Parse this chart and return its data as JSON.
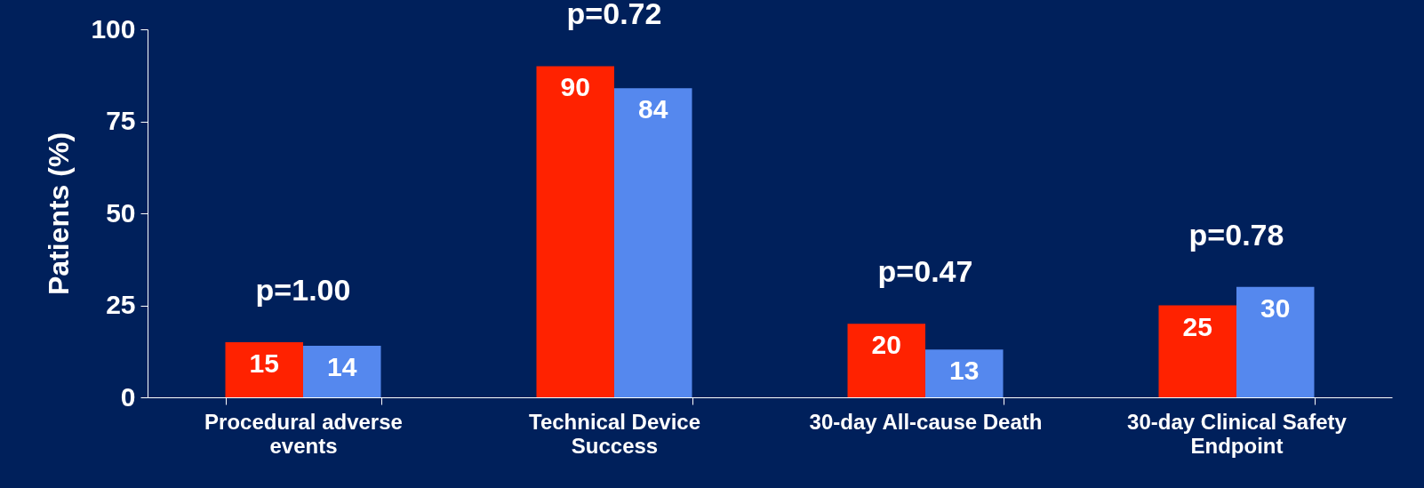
{
  "chart_data": {
    "type": "bar",
    "ylabel": "Patients (%)",
    "categories": [
      "Procedural adverse events",
      "Technical Device Success",
      "30-day All-cause Death",
      "30-day Clinical Safety Endpoint"
    ],
    "series": [
      {
        "color": "#ff2200",
        "values": [
          15,
          90,
          20,
          25
        ]
      },
      {
        "color": "#5588ee",
        "values": [
          14,
          84,
          13,
          30
        ]
      }
    ],
    "ylim": [
      0,
      100
    ],
    "yticks": [
      0,
      25,
      50,
      75,
      100
    ],
    "grid": false,
    "legend": false,
    "data_labels": true,
    "annotations": [
      "p=1.00",
      "p=0.72",
      "p=0.47",
      "p=0.78"
    ]
  }
}
